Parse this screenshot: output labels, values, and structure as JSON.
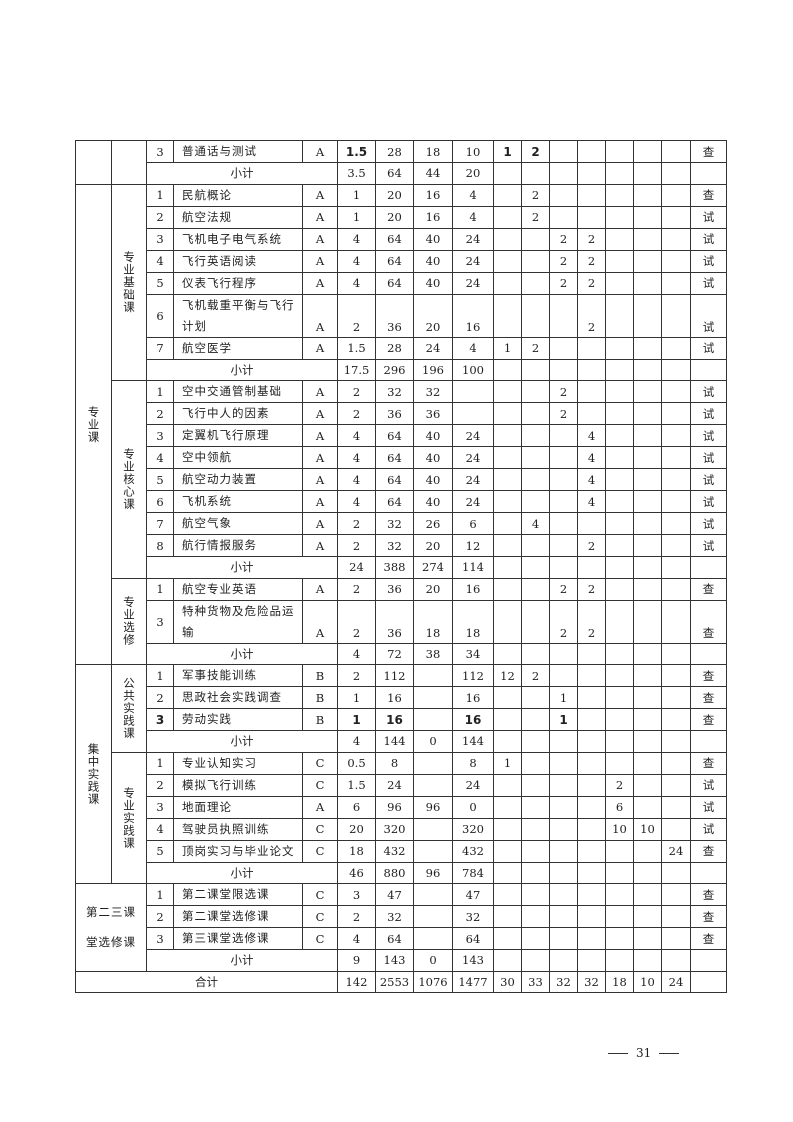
{
  "sections": [
    {
      "category": "",
      "groups": [
        {
          "label": "",
          "rows": [
            {
              "no": "3",
              "name": "普通话与测试",
              "type": "A",
              "credits": "1.5",
              "total": "28",
              "theory": "18",
              "practice": "10",
              "sem": [
                "1",
                "2",
                "",
                "",
                "",
                "",
                ""
              ],
              "exam": "查",
              "bold": [
                "credits",
                "sem0",
                "sem1"
              ]
            }
          ],
          "subtotal": {
            "label": "小计",
            "credits": "3.5",
            "total": "64",
            "theory": "44",
            "practice": "20"
          }
        }
      ]
    },
    {
      "category": "专业课",
      "groups": [
        {
          "label": "专业基础课",
          "rows": [
            {
              "no": "1",
              "name": "民航概论",
              "type": "A",
              "credits": "1",
              "total": "20",
              "theory": "16",
              "practice": "4",
              "sem": [
                "",
                "2",
                "",
                "",
                "",
                "",
                ""
              ],
              "exam": "查"
            },
            {
              "no": "2",
              "name": "航空法规",
              "type": "A",
              "credits": "1",
              "total": "20",
              "theory": "16",
              "practice": "4",
              "sem": [
                "",
                "2",
                "",
                "",
                "",
                "",
                ""
              ],
              "exam": "试"
            },
            {
              "no": "3",
              "name": "飞机电子电气系统",
              "type": "A",
              "credits": "4",
              "total": "64",
              "theory": "40",
              "practice": "24",
              "sem": [
                "",
                "",
                "2",
                "2",
                "",
                "",
                ""
              ],
              "exam": "试"
            },
            {
              "no": "4",
              "name": "飞行英语阅读",
              "type": "A",
              "credits": "4",
              "total": "64",
              "theory": "40",
              "practice": "24",
              "sem": [
                "",
                "",
                "2",
                "2",
                "",
                "",
                ""
              ],
              "exam": "试"
            },
            {
              "no": "5",
              "name": "仪表飞行程序",
              "type": "A",
              "credits": "4",
              "total": "64",
              "theory": "40",
              "practice": "24",
              "sem": [
                "",
                "",
                "2",
                "2",
                "",
                "",
                ""
              ],
              "exam": "试"
            },
            {
              "no": "6",
              "name": "飞机载重平衡与飞行计划",
              "type": "A",
              "credits": "2",
              "total": "36",
              "theory": "20",
              "practice": "16",
              "sem": [
                "",
                "",
                "",
                "2",
                "",
                "",
                ""
              ],
              "exam": "试",
              "tall": true
            },
            {
              "no": "7",
              "name": "航空医学",
              "type": "A",
              "credits": "1.5",
              "total": "28",
              "theory": "24",
              "practice": "4",
              "sem": [
                "1",
                "2",
                "",
                "",
                "",
                "",
                ""
              ],
              "exam": "试"
            }
          ],
          "subtotal": {
            "label": "小计",
            "credits": "17.5",
            "total": "296",
            "theory": "196",
            "practice": "100"
          }
        },
        {
          "label": "专业核心课",
          "rows": [
            {
              "no": "1",
              "name": "空中交通管制基础",
              "type": "A",
              "credits": "2",
              "total": "32",
              "theory": "32",
              "practice": "",
              "sem": [
                "",
                "",
                "2",
                "",
                "",
                "",
                ""
              ],
              "exam": "试"
            },
            {
              "no": "2",
              "name": "飞行中人的因素",
              "type": "A",
              "credits": "2",
              "total": "36",
              "theory": "36",
              "practice": "",
              "sem": [
                "",
                "",
                "2",
                "",
                "",
                "",
                ""
              ],
              "exam": "试"
            },
            {
              "no": "3",
              "name": "定翼机飞行原理",
              "type": "A",
              "credits": "4",
              "total": "64",
              "theory": "40",
              "practice": "24",
              "sem": [
                "",
                "",
                "",
                "4",
                "",
                "",
                ""
              ],
              "exam": "试"
            },
            {
              "no": "4",
              "name": "空中领航",
              "type": "A",
              "credits": "4",
              "total": "64",
              "theory": "40",
              "practice": "24",
              "sem": [
                "",
                "",
                "",
                "4",
                "",
                "",
                ""
              ],
              "exam": "试"
            },
            {
              "no": "5",
              "name": "航空动力装置",
              "type": "A",
              "credits": "4",
              "total": "64",
              "theory": "40",
              "practice": "24",
              "sem": [
                "",
                "",
                "",
                "4",
                "",
                "",
                ""
              ],
              "exam": "试"
            },
            {
              "no": "6",
              "name": "飞机系统",
              "type": "A",
              "credits": "4",
              "total": "64",
              "theory": "40",
              "practice": "24",
              "sem": [
                "",
                "",
                "",
                "4",
                "",
                "",
                ""
              ],
              "exam": "试"
            },
            {
              "no": "7",
              "name": "航空气象",
              "type": "A",
              "credits": "2",
              "total": "32",
              "theory": "26",
              "practice": "6",
              "sem": [
                "",
                "4",
                "",
                "",
                "",
                "",
                ""
              ],
              "exam": "试"
            },
            {
              "no": "8",
              "name": "航行情报服务",
              "type": "A",
              "credits": "2",
              "total": "32",
              "theory": "20",
              "practice": "12",
              "sem": [
                "",
                "",
                "",
                "2",
                "",
                "",
                ""
              ],
              "exam": "试"
            }
          ],
          "subtotal": {
            "label": "小计",
            "credits": "24",
            "total": "388",
            "theory": "274",
            "practice": "114"
          }
        },
        {
          "label": "专业选修",
          "rows": [
            {
              "no": "1",
              "name": "航空专业英语",
              "type": "A",
              "credits": "2",
              "total": "36",
              "theory": "20",
              "practice": "16",
              "sem": [
                "",
                "",
                "2",
                "2",
                "",
                "",
                ""
              ],
              "exam": "查"
            },
            {
              "no": "3",
              "name": "特种货物及危险品运输",
              "type": "A",
              "credits": "2",
              "total": "36",
              "theory": "18",
              "practice": "18",
              "sem": [
                "",
                "",
                "2",
                "2",
                "",
                "",
                ""
              ],
              "exam": "查",
              "tall": true
            }
          ],
          "subtotal": {
            "label": "小计",
            "credits": "4",
            "total": "72",
            "theory": "38",
            "practice": "34"
          }
        }
      ]
    },
    {
      "category": "集中实践课",
      "groups": [
        {
          "label": "公共实践课",
          "rows": [
            {
              "no": "1",
              "name": "军事技能训练",
              "type": "B",
              "credits": "2",
              "total": "112",
              "theory": "",
              "practice": "112",
              "sem": [
                "12",
                "2",
                "",
                "",
                "",
                "",
                ""
              ],
              "exam": "查"
            },
            {
              "no": "2",
              "name": "思政社会实践调查",
              "type": "B",
              "credits": "1",
              "total": "16",
              "theory": "",
              "practice": "16",
              "sem": [
                "",
                "",
                "1",
                "",
                "",
                "",
                ""
              ],
              "exam": "查"
            },
            {
              "no": "3",
              "name": "劳动实践",
              "type": "B",
              "credits": "1",
              "total": "16",
              "theory": "",
              "practice": "16",
              "sem": [
                "",
                "",
                "1",
                "",
                "",
                "",
                ""
              ],
              "exam": "查",
              "bold": [
                "no",
                "credits",
                "total",
                "practice",
                "sem2"
              ]
            }
          ],
          "subtotal": {
            "label": "小计",
            "credits": "4",
            "total": "144",
            "theory": "0",
            "practice": "144"
          }
        },
        {
          "label": "专业实践课",
          "rows": [
            {
              "no": "1",
              "name": "专业认知实习",
              "type": "C",
              "credits": "0.5",
              "total": "8",
              "theory": "",
              "practice": "8",
              "sem": [
                "1",
                "",
                "",
                "",
                "",
                "",
                ""
              ],
              "exam": "查"
            },
            {
              "no": "2",
              "name": "模拟飞行训练",
              "type": "C",
              "credits": "1.5",
              "total": "24",
              "theory": "",
              "practice": "24",
              "sem": [
                "",
                "",
                "",
                "",
                "2",
                "",
                ""
              ],
              "exam": "试"
            },
            {
              "no": "3",
              "name": "地面理论",
              "type": "A",
              "credits": "6",
              "total": "96",
              "theory": "96",
              "practice": "0",
              "sem": [
                "",
                "",
                "",
                "",
                "6",
                "",
                ""
              ],
              "exam": "试"
            },
            {
              "no": "4",
              "name": "驾驶员执照训练",
              "type": "C",
              "credits": "20",
              "total": "320",
              "theory": "",
              "practice": "320",
              "sem": [
                "",
                "",
                "",
                "",
                "10",
                "10",
                ""
              ],
              "exam": "试"
            },
            {
              "no": "5",
              "name": "顶岗实习与毕业论文",
              "type": "C",
              "credits": "18",
              "total": "432",
              "theory": "",
              "practice": "432",
              "sem": [
                "",
                "",
                "",
                "",
                "",
                "",
                "24"
              ],
              "exam": "查"
            }
          ],
          "subtotal": {
            "label": "小计",
            "credits": "46",
            "total": "880",
            "theory": "96",
            "practice": "784"
          }
        }
      ]
    },
    {
      "category": "第二三课堂选修课",
      "merged": true,
      "groups": [
        {
          "label": "",
          "rows": [
            {
              "no": "1",
              "name": "第二课堂限选课",
              "type": "C",
              "credits": "3",
              "total": "47",
              "theory": "",
              "practice": "47",
              "sem": [
                "",
                "",
                "",
                "",
                "",
                "",
                ""
              ],
              "exam": "查"
            },
            {
              "no": "2",
              "name": "第二课堂选修课",
              "type": "C",
              "credits": "2",
              "total": "32",
              "theory": "",
              "practice": "32",
              "sem": [
                "",
                "",
                "",
                "",
                "",
                "",
                ""
              ],
              "exam": "查"
            },
            {
              "no": "3",
              "name": "第三课堂选修课",
              "type": "C",
              "credits": "4",
              "total": "64",
              "theory": "",
              "practice": "64",
              "sem": [
                "",
                "",
                "",
                "",
                "",
                "",
                ""
              ],
              "exam": "查"
            }
          ],
          "subtotal": {
            "label": "小计",
            "credits": "9",
            "total": "143",
            "theory": "0",
            "practice": "143"
          }
        }
      ]
    }
  ],
  "total": {
    "label": "合计",
    "credits": "142",
    "total": "2553",
    "theory": "1076",
    "practice": "1477",
    "sem": [
      "30",
      "33",
      "32",
      "32",
      "18",
      "10",
      "24"
    ],
    "exam": ""
  },
  "footer": {
    "page_number": "31"
  }
}
